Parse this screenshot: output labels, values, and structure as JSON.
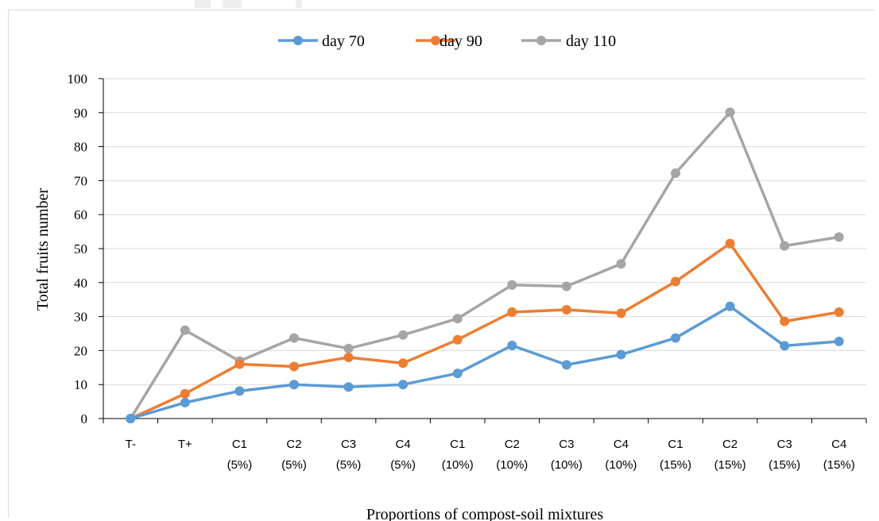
{
  "chart_data": {
    "type": "line",
    "title": "",
    "xlabel": "Proportions of compost-soil mixtures",
    "ylabel": "Total fruits number",
    "ylim": [
      0,
      100
    ],
    "yticks": [
      "0",
      "10",
      "20",
      "30",
      "40",
      "50",
      "60",
      "70",
      "80",
      "90",
      "100"
    ],
    "grid": true,
    "legend": "top-center",
    "categories": [
      [
        "T-",
        ""
      ],
      [
        "T+",
        ""
      ],
      [
        "C1",
        "(5%)"
      ],
      [
        "C2",
        "(5%)"
      ],
      [
        "C3",
        "(5%)"
      ],
      [
        "C4",
        "(5%)"
      ],
      [
        "C1",
        "(10%)"
      ],
      [
        "C2",
        "(10%)"
      ],
      [
        "C3",
        "(10%)"
      ],
      [
        "C4",
        "(10%)"
      ],
      [
        "C1",
        "(15%)"
      ],
      [
        "C2",
        "(15%)"
      ],
      [
        "C3",
        "(15%)"
      ],
      [
        "C4",
        "(15%)"
      ]
    ],
    "series": [
      {
        "name": "day 70",
        "color": "#5b9bd5",
        "values": [
          0,
          4.7,
          8.1,
          10,
          9.3,
          10,
          13.3,
          21.5,
          15.8,
          18.8,
          23.7,
          33,
          21.4,
          22.7
        ]
      },
      {
        "name": "day 90",
        "color": "#ed7d31",
        "values": [
          0,
          7.3,
          16,
          15.3,
          18,
          16.3,
          23.2,
          31.3,
          32,
          31,
          40.3,
          51.5,
          28.6,
          31.3
        ]
      },
      {
        "name": "day 110",
        "color": "#a5a5a5",
        "values": [
          0,
          26,
          16.9,
          23.7,
          20.6,
          24.6,
          29.4,
          39.3,
          38.9,
          45.5,
          72.2,
          90.1,
          50.8,
          53.4
        ]
      }
    ]
  }
}
